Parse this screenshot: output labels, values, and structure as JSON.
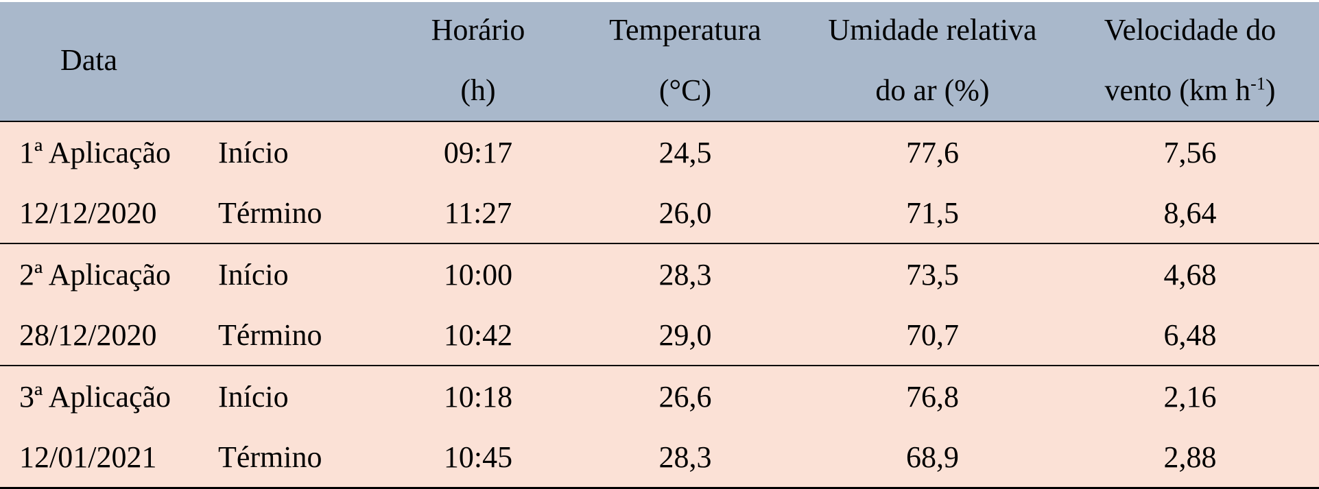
{
  "header": {
    "date": "Data",
    "time_line1": "Horário",
    "time_line2": "(h)",
    "temp_line1": "Temperatura",
    "temp_line2": "(°C)",
    "humidity_line1": "Umidade relativa",
    "humidity_line2": "do ar (%)",
    "wind_line1": "Velocidade do",
    "wind_line2_prefix": "vento (km h",
    "wind_line2_sup": "-1",
    "wind_line2_suffix": ")"
  },
  "rows": [
    {
      "date": "1ª Aplicação",
      "phase": "Início",
      "time": "09:17",
      "temp": "24,5",
      "humidity": "77,6",
      "wind": "7,56"
    },
    {
      "date": "12/12/2020",
      "phase": "Término",
      "time": "11:27",
      "temp": "26,0",
      "humidity": "71,5",
      "wind": "8,64"
    },
    {
      "date": "2ª Aplicação",
      "phase": "Início",
      "time": "10:00",
      "temp": "28,3",
      "humidity": "73,5",
      "wind": "4,68"
    },
    {
      "date": "28/12/2020",
      "phase": "Término",
      "time": "10:42",
      "temp": "29,0",
      "humidity": "70,7",
      "wind": "6,48"
    },
    {
      "date": "3ª Aplicação",
      "phase": "Início",
      "time": "10:18",
      "temp": "26,6",
      "humidity": "76,8",
      "wind": "2,16"
    },
    {
      "date": "12/01/2021",
      "phase": "Término",
      "time": "10:45",
      "temp": "28,3",
      "humidity": "68,9",
      "wind": "2,88"
    }
  ]
}
